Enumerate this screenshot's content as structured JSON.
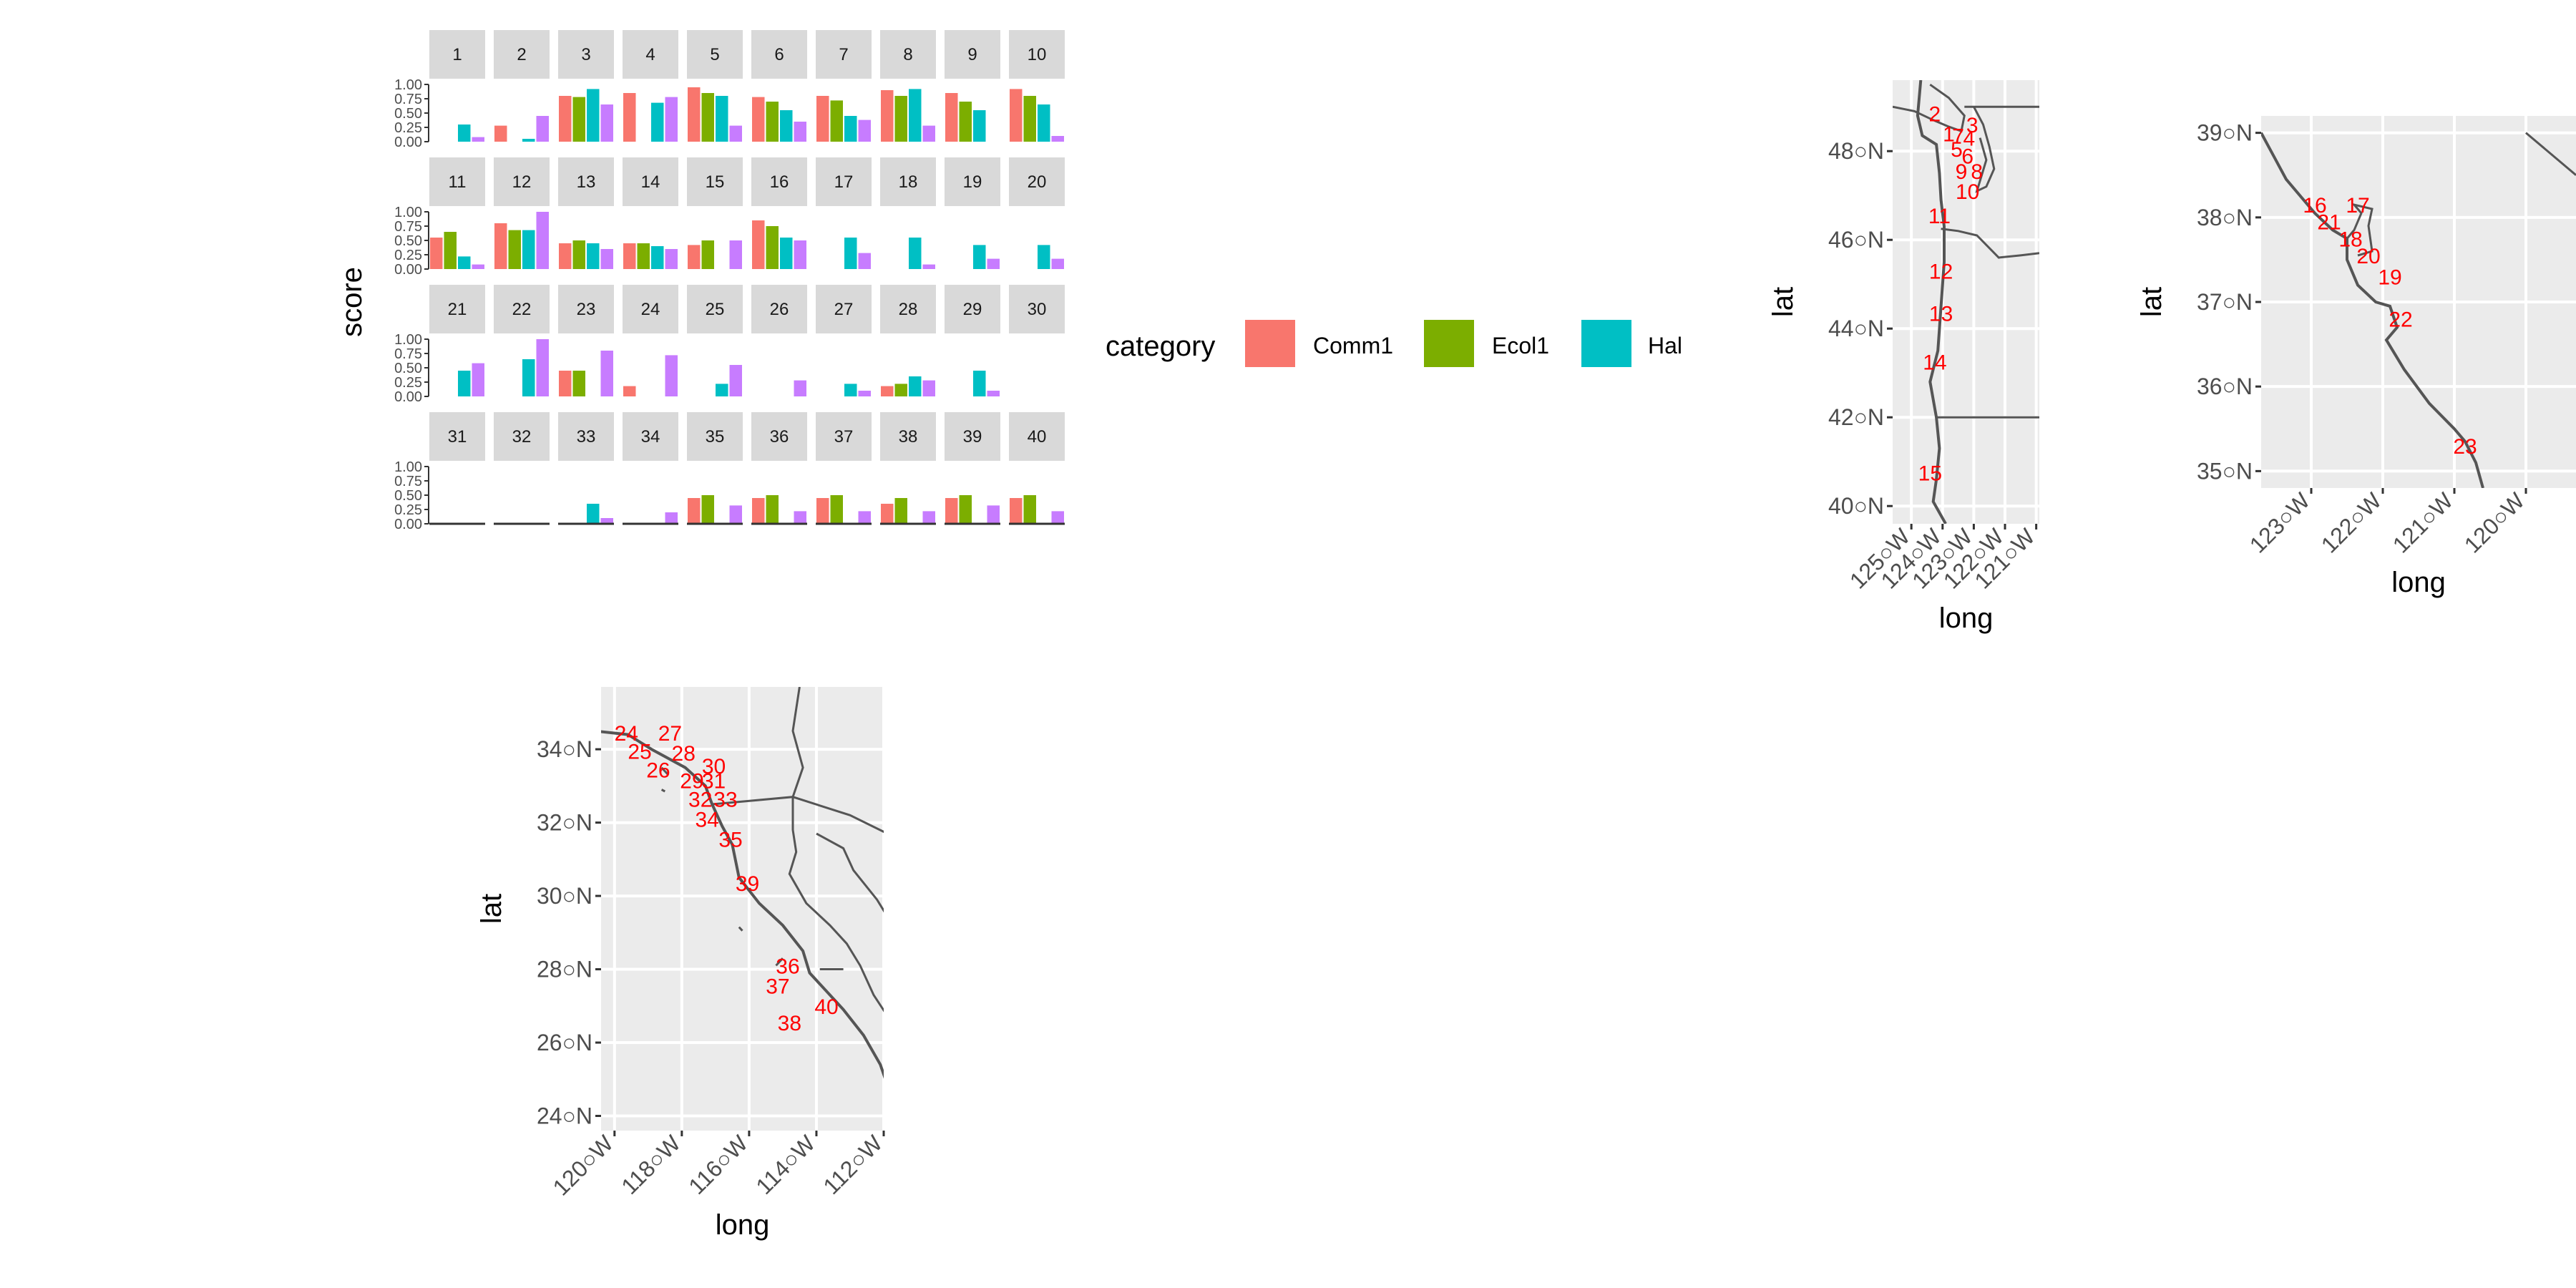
{
  "chart_data": [
    {
      "type": "bar",
      "facet_layout": "wrap",
      "ylabel": "score",
      "xlabel": "",
      "ylim": [
        0,
        1
      ],
      "y_ticks": [
        "0.00",
        "0.25",
        "0.50",
        "0.75",
        "1.00"
      ],
      "legend": {
        "title": "category",
        "placement": "right",
        "entries": [
          {
            "label": "Comm1",
            "color": "#F8766D"
          },
          {
            "label": "Ecol1",
            "color": "#7CAE00"
          },
          {
            "label": "Hal",
            "color": "#00BFC4"
          },
          {
            "label": "",
            "color": "#C77CFF"
          }
        ]
      },
      "series_names": [
        "Comm1",
        "Ecol1",
        "Hal",
        ""
      ],
      "series_colors": [
        "#F8766D",
        "#7CAE00",
        "#00BFC4",
        "#C77CFF"
      ],
      "facets": [
        {
          "label": "1",
          "values": [
            0,
            0,
            0.3,
            0.08
          ]
        },
        {
          "label": "2",
          "values": [
            0.28,
            0,
            0.05,
            0.45
          ]
        },
        {
          "label": "3",
          "values": [
            0.8,
            0.78,
            0.92,
            0.65
          ]
        },
        {
          "label": "4",
          "values": [
            0.85,
            0,
            0.68,
            0.78
          ]
        },
        {
          "label": "5",
          "values": [
            0.95,
            0.85,
            0.8,
            0.28
          ]
        },
        {
          "label": "6",
          "values": [
            0.78,
            0.7,
            0.55,
            0.35
          ]
        },
        {
          "label": "7",
          "values": [
            0.8,
            0.72,
            0.45,
            0.38
          ]
        },
        {
          "label": "8",
          "values": [
            0.9,
            0.8,
            0.92,
            0.28
          ]
        },
        {
          "label": "9",
          "values": [
            0.85,
            0.7,
            0.55,
            0
          ]
        },
        {
          "label": "10",
          "values": [
            0.92,
            0.8,
            0.65,
            0.1
          ]
        },
        {
          "label": "11",
          "values": [
            0.55,
            0.65,
            0.22,
            0.08
          ]
        },
        {
          "label": "12",
          "values": [
            0.8,
            0.68,
            0.68,
            1.0
          ]
        },
        {
          "label": "13",
          "values": [
            0.45,
            0.5,
            0.45,
            0.35
          ]
        },
        {
          "label": "14",
          "values": [
            0.45,
            0.45,
            0.4,
            0.35
          ]
        },
        {
          "label": "15",
          "values": [
            0.42,
            0.5,
            0,
            0.5
          ]
        },
        {
          "label": "16",
          "values": [
            0.85,
            0.75,
            0.55,
            0.5
          ]
        },
        {
          "label": "17",
          "values": [
            0,
            0,
            0.55,
            0.28
          ]
        },
        {
          "label": "18",
          "values": [
            0,
            0,
            0.55,
            0.08
          ]
        },
        {
          "label": "19",
          "values": [
            0,
            0,
            0.42,
            0.18
          ]
        },
        {
          "label": "20",
          "values": [
            0,
            0,
            0.42,
            0.18
          ]
        },
        {
          "label": "21",
          "values": [
            0,
            0,
            0.45,
            0.58
          ]
        },
        {
          "label": "22",
          "values": [
            0,
            0,
            0.65,
            1.0
          ]
        },
        {
          "label": "23",
          "values": [
            0.45,
            0.45,
            0,
            0.8
          ]
        },
        {
          "label": "24",
          "values": [
            0.18,
            0,
            0,
            0.72
          ]
        },
        {
          "label": "25",
          "values": [
            0,
            0,
            0.22,
            0.55
          ]
        },
        {
          "label": "26",
          "values": [
            0,
            0,
            0,
            0.28
          ]
        },
        {
          "label": "27",
          "values": [
            0,
            0,
            0.22,
            0.1
          ]
        },
        {
          "label": "28",
          "values": [
            0.18,
            0.22,
            0.35,
            0.28
          ]
        },
        {
          "label": "29",
          "values": [
            0,
            0,
            0.45,
            0.1
          ]
        },
        {
          "label": "30",
          "values": [
            0,
            0,
            0,
            0
          ]
        },
        {
          "label": "31",
          "values": [
            0,
            0,
            0,
            0
          ]
        },
        {
          "label": "32",
          "values": [
            0,
            0,
            0,
            0
          ]
        },
        {
          "label": "33",
          "values": [
            0,
            0,
            0.35,
            0.1
          ]
        },
        {
          "label": "34",
          "values": [
            0,
            0,
            0,
            0.2
          ]
        },
        {
          "label": "35",
          "values": [
            0.45,
            0.5,
            0,
            0.32
          ]
        },
        {
          "label": "36",
          "values": [
            0.45,
            0.5,
            0,
            0.22
          ]
        },
        {
          "label": "37",
          "values": [
            0.45,
            0.5,
            0,
            0.22
          ]
        },
        {
          "label": "38",
          "values": [
            0.35,
            0.45,
            0,
            0.22
          ]
        },
        {
          "label": "39",
          "values": [
            0.45,
            0.5,
            0,
            0.32
          ]
        },
        {
          "label": "40",
          "values": [
            0.45,
            0.5,
            0,
            0.22
          ]
        }
      ]
    },
    {
      "type": "scatter",
      "subtype": "map",
      "xlabel": "long",
      "ylabel": "lat",
      "xlim": [
        -125.6,
        -120.9
      ],
      "ylim": [
        39.6,
        49.6
      ],
      "x_ticks": [
        -125,
        -124,
        -123,
        -122,
        -121
      ],
      "x_tick_labels": [
        "125○W",
        "124○W",
        "123○W",
        "122○W",
        "121○W"
      ],
      "y_ticks": [
        40,
        42,
        44,
        46,
        48
      ],
      "y_tick_labels": [
        "40○N",
        "42○N",
        "44○N",
        "46○N",
        "48○N"
      ],
      "points": [
        {
          "label": "2",
          "x": -124.25,
          "y": 48.85
        },
        {
          "label": "3",
          "x": -123.05,
          "y": 48.6
        },
        {
          "label": "1",
          "x": -123.8,
          "y": 48.4
        },
        {
          "label": "7",
          "x": -123.5,
          "y": 48.35
        },
        {
          "label": "4",
          "x": -123.15,
          "y": 48.3
        },
        {
          "label": "5",
          "x": -123.55,
          "y": 48.05
        },
        {
          "label": "6",
          "x": -123.2,
          "y": 47.9
        },
        {
          "label": "9",
          "x": -123.4,
          "y": 47.55
        },
        {
          "label": "8",
          "x": -122.9,
          "y": 47.55
        },
        {
          "label": "10",
          "x": -123.2,
          "y": 47.1
        },
        {
          "label": "11",
          "x": -124.1,
          "y": 46.55
        },
        {
          "label": "12",
          "x": -124.05,
          "y": 45.3
        },
        {
          "label": "13",
          "x": -124.05,
          "y": 44.35
        },
        {
          "label": "14",
          "x": -124.25,
          "y": 43.25
        },
        {
          "label": "15",
          "x": -124.4,
          "y": 40.75
        }
      ]
    },
    {
      "type": "scatter",
      "subtype": "map",
      "xlabel": "long",
      "ylabel": "lat",
      "xlim": [
        -123.7,
        -119.3
      ],
      "ylim": [
        34.8,
        39.2
      ],
      "x_ticks": [
        -123,
        -122,
        -121,
        -120
      ],
      "x_tick_labels": [
        "123○W",
        "122○W",
        "121○W",
        "120○W"
      ],
      "y_ticks": [
        35,
        36,
        37,
        38,
        39
      ],
      "y_tick_labels": [
        "35○N",
        "36○N",
        "37○N",
        "38○N",
        "39○N"
      ],
      "points": [
        {
          "label": "16",
          "x": -122.95,
          "y": 38.15
        },
        {
          "label": "17",
          "x": -122.35,
          "y": 38.15
        },
        {
          "label": "21",
          "x": -122.75,
          "y": 37.95
        },
        {
          "label": "18",
          "x": -122.45,
          "y": 37.75
        },
        {
          "label": "20",
          "x": -122.2,
          "y": 37.55
        },
        {
          "label": "19",
          "x": -121.9,
          "y": 37.3
        },
        {
          "label": "22",
          "x": -121.75,
          "y": 36.8
        },
        {
          "label": "23",
          "x": -120.85,
          "y": 35.3
        }
      ]
    },
    {
      "type": "scatter",
      "subtype": "map",
      "xlabel": "long",
      "ylabel": "lat",
      "xlim": [
        -120.4,
        -112.0
      ],
      "ylim": [
        23.6,
        35.7
      ],
      "x_ticks": [
        -120,
        -118,
        -116,
        -114,
        -112
      ],
      "x_tick_labels": [
        "120○W",
        "118○W",
        "116○W",
        "114○W",
        "112○W"
      ],
      "y_ticks": [
        24,
        26,
        28,
        30,
        32,
        34
      ],
      "y_tick_labels": [
        "24○N",
        "26○N",
        "28○N",
        "30○N",
        "32○N",
        "34○N"
      ],
      "points": [
        {
          "label": "24",
          "x": -119.65,
          "y": 34.45
        },
        {
          "label": "27",
          "x": -118.35,
          "y": 34.45
        },
        {
          "label": "25",
          "x": -119.25,
          "y": 33.95
        },
        {
          "label": "28",
          "x": -117.95,
          "y": 33.9
        },
        {
          "label": "30",
          "x": -117.05,
          "y": 33.55
        },
        {
          "label": "26",
          "x": -118.7,
          "y": 33.45
        },
        {
          "label": "29",
          "x": -117.7,
          "y": 33.15
        },
        {
          "label": "31",
          "x": -117.05,
          "y": 33.15
        },
        {
          "label": "32",
          "x": -117.45,
          "y": 32.65
        },
        {
          "label": "33",
          "x": -116.7,
          "y": 32.65
        },
        {
          "label": "34",
          "x": -117.25,
          "y": 32.1
        },
        {
          "label": "35",
          "x": -116.55,
          "y": 31.55
        },
        {
          "label": "39",
          "x": -116.05,
          "y": 30.35
        },
        {
          "label": "36",
          "x": -114.85,
          "y": 28.1
        },
        {
          "label": "37",
          "x": -115.15,
          "y": 27.55
        },
        {
          "label": "40",
          "x": -113.7,
          "y": 27.0
        },
        {
          "label": "38",
          "x": -114.8,
          "y": 26.55
        }
      ]
    }
  ]
}
